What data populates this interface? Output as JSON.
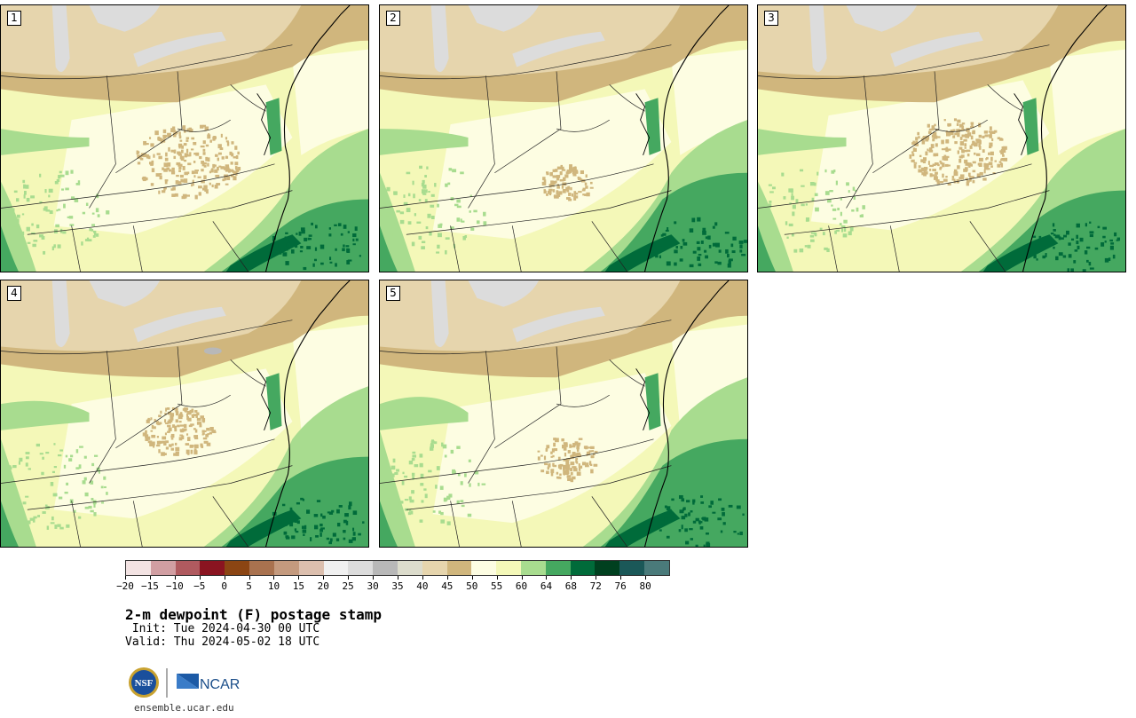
{
  "panels": [
    {
      "id": "1",
      "label": "1",
      "variant": 0
    },
    {
      "id": "2",
      "label": "2",
      "variant": 1
    },
    {
      "id": "3",
      "label": "3",
      "variant": 2
    },
    {
      "id": "4",
      "label": "4",
      "variant": 3
    },
    {
      "id": "5",
      "label": "5",
      "variant": 4
    }
  ],
  "colorbar": {
    "colors": [
      "#f3e3e3",
      "#d19ea2",
      "#b05a5f",
      "#8a1420",
      "#8b4513",
      "#a9724f",
      "#c49a7e",
      "#dcbfae",
      "#f0f0f0",
      "#dcdcdc",
      "#b8b8b8",
      "#dcdccc",
      "#e6d5ad",
      "#d0b67d",
      "#fdfde2",
      "#f4f8b8",
      "#a8dc8f",
      "#45a860",
      "#006b3a",
      "#00401f",
      "#1b5858",
      "#4a7a7a"
    ],
    "ticks": [
      "−20",
      "−15",
      "−10",
      "−5",
      "0",
      "5",
      "10",
      "15",
      "20",
      "25",
      "30",
      "35",
      "40",
      "45",
      "50",
      "55",
      "60",
      "64",
      "68",
      "72",
      "76",
      "80"
    ]
  },
  "title": "2-m dewpoint (F) postage stamp",
  "init": " Init: Tue 2024-04-30 00 UTC",
  "valid": "Valid: Thu 2024-05-02 18 UTC",
  "logos": {
    "nsf": "NSF",
    "ncar": "NCAR"
  },
  "site": "ensemble.ucar.edu"
}
